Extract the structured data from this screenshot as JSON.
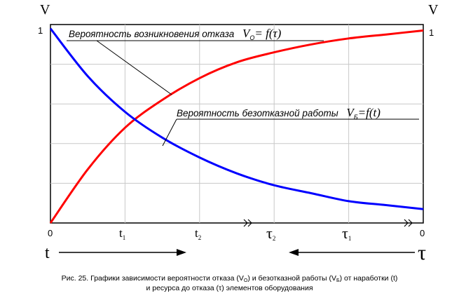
{
  "chart_data": {
    "type": "line",
    "x": [
      0,
      0.1,
      0.2,
      0.3,
      0.4,
      0.5,
      0.6,
      0.7,
      0.8,
      0.9,
      1.0
    ],
    "series": [
      {
        "name": "Вероятность возникновения отказа",
        "formula": "Vₒ= f(τ)",
        "color": "#ff0000",
        "values": [
          0.0,
          0.27,
          0.48,
          0.62,
          0.73,
          0.81,
          0.86,
          0.9,
          0.93,
          0.95,
          0.97
        ]
      },
      {
        "name": "Вероятность безотказной работы",
        "formula": "Vб=f(t)",
        "color": "#0000ff",
        "values": [
          0.98,
          0.74,
          0.56,
          0.43,
          0.33,
          0.25,
          0.19,
          0.15,
          0.11,
          0.09,
          0.07
        ]
      }
    ],
    "ylim": [
      0,
      1
    ],
    "y_axis_label_left": "V",
    "y_axis_label_right": "V",
    "y_tick_left": "1",
    "y_tick_right": "1",
    "x_ticks_bottom": {
      "left_zero": "0",
      "t1": "t",
      "t1_sub": "1",
      "t2": "t",
      "t2_sub": "2",
      "tau2": "τ",
      "tau2_sub": "2",
      "tau1": "τ",
      "tau1_sub": "1",
      "right_zero": "0"
    },
    "arrow_left_label": "t",
    "arrow_right_label": "τ",
    "annotation_red_text": "Вероятность возникновения отказа",
    "annotation_red_V": "V",
    "annotation_red_sub": "О",
    "annotation_red_eq": "= f(τ)",
    "annotation_blue_text": "Вероятность безотказной работы",
    "annotation_blue_V": "V",
    "annotation_blue_sub": "Б",
    "annotation_blue_eq": "=f(t)",
    "grid": true
  },
  "caption": {
    "line1_a": "Рис. 25. Графики зависимости вероятности отказа  (V",
    "line1_sub1": "О",
    "line1_b": ") и безотказной работы (V",
    "line1_sub2": "Б",
    "line1_c": ") от наработки (t)",
    "line2": "и ресурса до отказа (τ) элементов оборудования"
  }
}
